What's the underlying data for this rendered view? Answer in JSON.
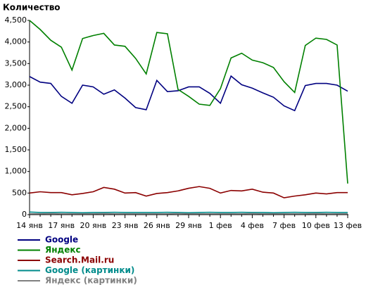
{
  "chart_data": {
    "type": "line",
    "title": "Количество",
    "categories": [
      "14 янв",
      null,
      null,
      "17 янв",
      null,
      null,
      "20 янв",
      null,
      null,
      "23 янв",
      null,
      null,
      "26 янв",
      null,
      null,
      "29 янв",
      null,
      null,
      "1 фев",
      null,
      null,
      "4 фев",
      null,
      null,
      "7 фев",
      null,
      null,
      "10 фев",
      null,
      null,
      "13 фев"
    ],
    "series": [
      {
        "name": "Google",
        "color": "#000080",
        "values": [
          3200,
          3070,
          3040,
          2740,
          2580,
          3000,
          2960,
          2790,
          2890,
          2700,
          2480,
          2430,
          3110,
          2850,
          2870,
          2960,
          2960,
          2810,
          2580,
          3210,
          3010,
          2930,
          2820,
          2720,
          2520,
          2410,
          2990,
          3040,
          3040,
          3000,
          2860
        ]
      },
      {
        "name": "Яндекс",
        "color": "#008000",
        "values": [
          4500,
          4290,
          4040,
          3880,
          3350,
          4080,
          4150,
          4200,
          3930,
          3900,
          3620,
          3260,
          4220,
          4190,
          2900,
          2740,
          2560,
          2530,
          2920,
          3630,
          3740,
          3580,
          3520,
          3410,
          3080,
          2830,
          3920,
          4090,
          4060,
          3930,
          720
        ]
      },
      {
        "name": "Search.Mail.ru",
        "color": "#8b0000",
        "values": [
          500,
          530,
          510,
          510,
          460,
          490,
          530,
          630,
          590,
          500,
          510,
          430,
          490,
          510,
          550,
          610,
          650,
          610,
          500,
          560,
          550,
          590,
          520,
          500,
          390,
          430,
          460,
          500,
          480,
          510,
          510
        ]
      },
      {
        "name": "Google (картинки)",
        "color": "#008b8b",
        "values": [
          60,
          50,
          50,
          55,
          50,
          45,
          50,
          50,
          55,
          50,
          50,
          50,
          50,
          55,
          50,
          45,
          50,
          55,
          50,
          50,
          55,
          50,
          50,
          45,
          50,
          55,
          50,
          50,
          55,
          50,
          50
        ]
      },
      {
        "name": "Яндекс (картинки)",
        "color": "#808080",
        "values": [
          20,
          20,
          25,
          20,
          20,
          20,
          20,
          25,
          20,
          20,
          20,
          20,
          20,
          20,
          25,
          20,
          20,
          20,
          20,
          20,
          20,
          25,
          20,
          20,
          20,
          20,
          20,
          25,
          20,
          20,
          20
        ]
      }
    ],
    "ylim": [
      0,
      4500
    ],
    "yticks": [
      0,
      500,
      {
        "value": 1000,
        "label": "1,000"
      },
      {
        "value": 1500,
        "label": "1,500"
      },
      {
        "value": 2000,
        "label": "2,000"
      },
      {
        "value": 2500,
        "label": "2,500"
      },
      {
        "value": 3000,
        "label": "3,000"
      },
      {
        "value": 3500,
        "label": "3,500"
      },
      {
        "value": 4000,
        "label": "4,000"
      },
      {
        "value": 4500,
        "label": "4,500"
      }
    ],
    "grid": false
  }
}
